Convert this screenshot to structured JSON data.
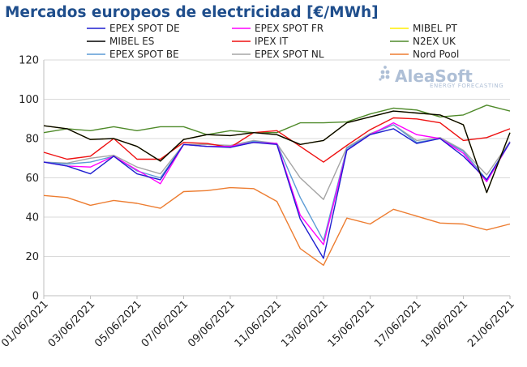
{
  "chart_data": {
    "type": "line",
    "title": "Mercados europeos de electricidad [€/MWh]",
    "ylim": [
      0,
      120
    ],
    "yticks": [
      0,
      20,
      40,
      60,
      80,
      100,
      120
    ],
    "grid": true,
    "legend_position": "top",
    "x": [
      "01/06/2021",
      "02/06/2021",
      "03/06/2021",
      "04/06/2021",
      "05/06/2021",
      "06/06/2021",
      "07/06/2021",
      "08/06/2021",
      "09/06/2021",
      "10/06/2021",
      "11/06/2021",
      "12/06/2021",
      "13/06/2021",
      "14/06/2021",
      "15/06/2021",
      "16/06/2021",
      "17/06/2021",
      "18/06/2021",
      "19/06/2021",
      "20/06/2021",
      "21/06/2021"
    ],
    "xticklabels": [
      "01/06/2021",
      "03/06/2021",
      "05/06/2021",
      "07/06/2021",
      "09/06/2021",
      "11/06/2021",
      "13/06/2021",
      "15/06/2021",
      "17/06/2021",
      "19/06/2021",
      "21/06/2021"
    ],
    "series": [
      {
        "name": "EPEX SPOT DE",
        "color": "#1f1fd0",
        "values": [
          68,
          66,
          62,
          71,
          62,
          59,
          77,
          76,
          75.5,
          78,
          77,
          39,
          19,
          74,
          82,
          85,
          77.5,
          80,
          71,
          59,
          78
        ]
      },
      {
        "name": "EPEX SPOT FR",
        "color": "#ff00ff",
        "values": [
          68,
          66,
          65.5,
          71,
          64,
          57,
          77,
          76,
          76,
          78,
          77.5,
          41,
          26,
          74,
          82,
          88,
          82,
          80,
          72.5,
          58,
          78
        ]
      },
      {
        "name": "MIBEL PT",
        "color": "#ffee00",
        "values": [
          86.5,
          85,
          79.5,
          80,
          76,
          68.5,
          79.5,
          82,
          81.5,
          83,
          82,
          77,
          79,
          88,
          91,
          94,
          93,
          92,
          87,
          52.5,
          83
        ]
      },
      {
        "name": "IPEX IT",
        "color": "#ee1111",
        "values": [
          73,
          69.5,
          71,
          80,
          69.5,
          69.5,
          78,
          77.5,
          75.5,
          83,
          84,
          76,
          68,
          76.5,
          84.5,
          90.5,
          90,
          88,
          79,
          80.5,
          85
        ]
      },
      {
        "name": "N2EX UK",
        "color": "#4f8a2a",
        "values": [
          83,
          85,
          84,
          86,
          84,
          86,
          86,
          82,
          84,
          83,
          83,
          88,
          88,
          88.5,
          92.5,
          95.5,
          94.5,
          91,
          92,
          97,
          94
        ]
      },
      {
        "name": "MIBEL ES",
        "color": "#000000",
        "values": [
          86.5,
          85,
          79.5,
          80,
          76,
          68.5,
          79.5,
          82,
          81.5,
          83,
          82,
          77,
          79,
          88,
          91,
          94,
          93,
          92,
          87,
          52.5,
          83
        ]
      },
      {
        "name": "EPEX SPOT BE",
        "color": "#5b9bd5",
        "values": [
          68,
          67,
          68,
          71,
          63.5,
          60,
          77,
          76,
          76,
          78.5,
          77.5,
          50,
          28,
          75,
          82,
          87,
          78,
          80,
          73.5,
          59,
          78
        ]
      },
      {
        "name": "EPEX SPOT NL",
        "color": "#a5a5a5",
        "values": [
          68,
          67.5,
          70,
          71.5,
          65.5,
          62,
          77,
          77,
          76.5,
          79,
          77.5,
          60,
          49,
          75.5,
          82.5,
          87,
          79,
          80.5,
          74,
          61.5,
          78.5
        ]
      },
      {
        "name": "Nord Pool",
        "color": "#ed7d31",
        "values": [
          51,
          50,
          46,
          48.5,
          47,
          44.5,
          53,
          53.5,
          55,
          54.5,
          48,
          24,
          15.5,
          39.5,
          36.5,
          44,
          40.5,
          37,
          36.5,
          33.5,
          36.5
        ]
      }
    ],
    "legend_order": [
      "EPEX SPOT DE",
      "EPEX SPOT FR",
      "MIBEL PT",
      "MIBEL ES",
      "IPEX IT",
      "N2EX UK",
      "EPEX SPOT BE",
      "EPEX SPOT NL",
      "Nord Pool"
    ]
  },
  "watermark": {
    "brand": "AleaSoft",
    "tagline": "ENERGY FORECASTING",
    "color": "#aebfd6"
  }
}
